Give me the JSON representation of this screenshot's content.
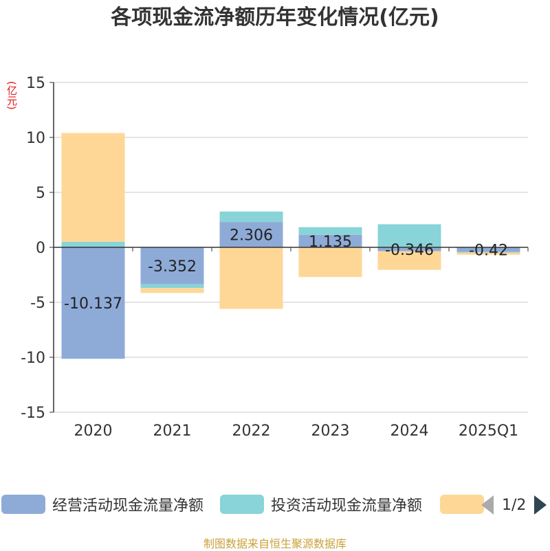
{
  "title": "各项现金流净额历年变化情况(亿元)",
  "unit_label": "(亿元)",
  "footer": "制图数据来自恒生聚源数据库",
  "pager": {
    "text": "1/2"
  },
  "colors": {
    "operating": "#8eabd8",
    "investing": "#88d4d8",
    "financing": "#fed797"
  },
  "chart_data": {
    "type": "bar",
    "stacked": true,
    "categories": [
      "2020",
      "2021",
      "2022",
      "2023",
      "2024",
      "2025Q1"
    ],
    "ylim": [
      -15,
      15
    ],
    "yticks": [
      15,
      10,
      5,
      0,
      -5,
      -10,
      -15
    ],
    "grid": true,
    "legend_position": "bottom",
    "series": [
      {
        "name": "经营活动现金流量净额",
        "color": "#8eabd8",
        "values": [
          -10.137,
          -3.352,
          2.306,
          1.135,
          -0.346,
          -0.42
        ],
        "labels": [
          "-10.137",
          "-3.352",
          "2.306",
          "1.135",
          "-0.346",
          "-0.42"
        ]
      },
      {
        "name": "投资活动现金流量净额",
        "color": "#88d4d8",
        "values": [
          0.5,
          -0.35,
          0.95,
          0.7,
          2.1,
          -0.05
        ]
      },
      {
        "name": "",
        "color": "#fed797",
        "values": [
          9.9,
          -0.45,
          -5.6,
          -2.7,
          -1.7,
          -0.2
        ]
      }
    ]
  }
}
